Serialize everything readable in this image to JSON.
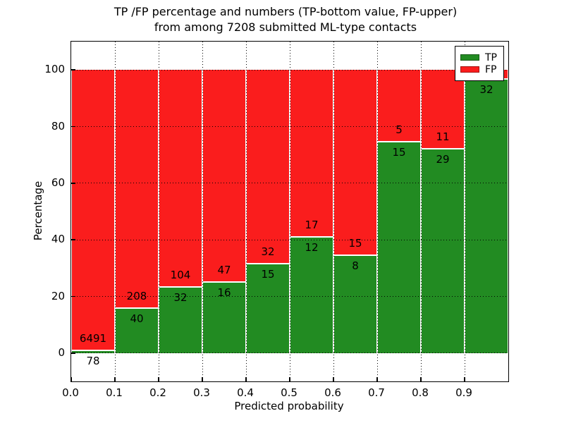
{
  "title": {
    "line1": "TP /FP percentage and numbers (TP-bottom value, FP-upper)",
    "line2": "from among 7208 submitted ML-type contacts"
  },
  "axes": {
    "xlabel": "Predicted probability",
    "ylabel": "Percentage",
    "x_tick_labels": [
      "0.0",
      "0.1",
      "0.2",
      "0.3",
      "0.4",
      "0.5",
      "0.6",
      "0.7",
      "0.8",
      "0.9"
    ],
    "y_tick_labels": [
      "0",
      "20",
      "40",
      "60",
      "80",
      "100"
    ],
    "y_tick_values": [
      0,
      20,
      40,
      60,
      80,
      100
    ],
    "xlim": [
      0.0,
      1.0
    ],
    "ylim": [
      -10,
      110
    ],
    "grid": "dotted-black"
  },
  "legend": {
    "position": "upper-right",
    "entries": [
      {
        "label": "TP",
        "color": "#228b22"
      },
      {
        "label": "FP",
        "color": "#fa1d1d"
      }
    ]
  },
  "colors": {
    "tp_green": "#228b22",
    "fp_red": "#fa1d1d",
    "background": "#ffffff",
    "grid": "#000000"
  },
  "chart_data": {
    "type": "bar",
    "stacked": true,
    "normalized_to_percent": 100,
    "title": "TP /FP percentage and numbers (TP-bottom value, FP-upper) from among 7208 submitted ML-type contacts",
    "xlabel": "Predicted probability",
    "ylabel": "Percentage",
    "total_contacts": 7208,
    "x_bins": [
      [
        0.0,
        0.1
      ],
      [
        0.1,
        0.2
      ],
      [
        0.2,
        0.3
      ],
      [
        0.3,
        0.4
      ],
      [
        0.4,
        0.5
      ],
      [
        0.5,
        0.6
      ],
      [
        0.6,
        0.7
      ],
      [
        0.7,
        0.8
      ],
      [
        0.8,
        0.9
      ],
      [
        0.9,
        1.0
      ]
    ],
    "series": [
      {
        "name": "TP",
        "counts": [
          78,
          40,
          32,
          16,
          15,
          12,
          8,
          15,
          29,
          32
        ]
      },
      {
        "name": "FP",
        "counts": [
          6491,
          208,
          104,
          47,
          32,
          17,
          15,
          5,
          11,
          1
        ]
      }
    ],
    "tp_percent": [
      1.19,
      16.13,
      23.53,
      25.4,
      31.91,
      41.38,
      34.78,
      75.0,
      72.5,
      96.97
    ],
    "bar_labels": {
      "fp": [
        "6491",
        "208",
        "104",
        "47",
        "32",
        "17",
        "15",
        "5",
        "11",
        ""
      ],
      "tp": [
        "78",
        "40",
        "32",
        "16",
        "15",
        "12",
        "8",
        "15",
        "29",
        "32"
      ]
    },
    "ylim": [
      -10,
      110
    ],
    "grid": true,
    "legend_position": "upper-right"
  }
}
